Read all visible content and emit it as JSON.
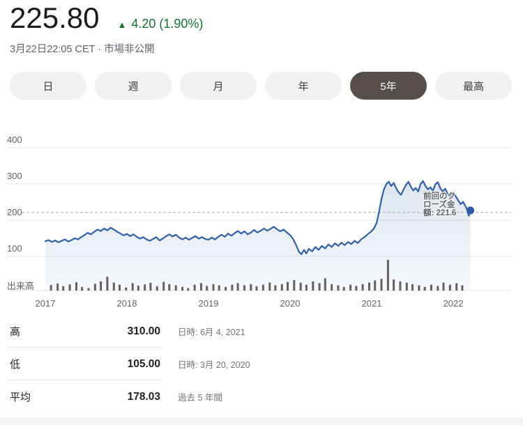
{
  "header": {
    "price": "225.80",
    "change_arrow": "▲",
    "change_text": "4.20 (1.90%)",
    "timestamp": "3月22日22:05 CET · 市場非公開"
  },
  "range_buttons": {
    "items": [
      {
        "label": "日",
        "selected": false
      },
      {
        "label": "週",
        "selected": false
      },
      {
        "label": "月",
        "selected": false
      },
      {
        "label": "年",
        "selected": false
      },
      {
        "label": "5年",
        "selected": true
      },
      {
        "label": "最高",
        "selected": false
      }
    ]
  },
  "chart_data": {
    "type": "line",
    "title": "",
    "xlabel": "",
    "ylabel": "",
    "x_ticks": [
      "2017",
      "2018",
      "2019",
      "2020",
      "2021",
      "2022"
    ],
    "y_ticks": [
      400,
      300,
      200,
      100
    ],
    "ylim": [
      60,
      430
    ],
    "grid": true,
    "volume_axis_label": "出来高",
    "previous_close": {
      "value": 221.6,
      "label_lines": [
        "前回のク",
        "ローズ金",
        "額: 221.6"
      ]
    },
    "last_price": 225.8,
    "high": {
      "value": 310.0,
      "date": "6月 4, 2021"
    },
    "low": {
      "value": 105.0,
      "date": "3月 20, 2020"
    },
    "average": {
      "value": 178.03,
      "period": "過去 5 年間"
    },
    "price_series": [
      [
        2017.0,
        142
      ],
      [
        2017.04,
        145
      ],
      [
        2017.08,
        140
      ],
      [
        2017.12,
        144
      ],
      [
        2017.16,
        139
      ],
      [
        2017.2,
        143
      ],
      [
        2017.24,
        147
      ],
      [
        2017.28,
        141
      ],
      [
        2017.32,
        145
      ],
      [
        2017.36,
        150
      ],
      [
        2017.4,
        147
      ],
      [
        2017.44,
        153
      ],
      [
        2017.48,
        159
      ],
      [
        2017.52,
        165
      ],
      [
        2017.56,
        161
      ],
      [
        2017.6,
        168
      ],
      [
        2017.64,
        174
      ],
      [
        2017.68,
        170
      ],
      [
        2017.72,
        177
      ],
      [
        2017.76,
        172
      ],
      [
        2017.8,
        179
      ],
      [
        2017.84,
        174
      ],
      [
        2017.88,
        168
      ],
      [
        2017.92,
        163
      ],
      [
        2017.96,
        158
      ],
      [
        2018.0,
        162
      ],
      [
        2018.04,
        156
      ],
      [
        2018.08,
        161
      ],
      [
        2018.12,
        154
      ],
      [
        2018.16,
        149
      ],
      [
        2018.2,
        153
      ],
      [
        2018.24,
        147
      ],
      [
        2018.28,
        143
      ],
      [
        2018.32,
        148
      ],
      [
        2018.36,
        153
      ],
      [
        2018.4,
        144
      ],
      [
        2018.44,
        149
      ],
      [
        2018.48,
        156
      ],
      [
        2018.52,
        161
      ],
      [
        2018.56,
        155
      ],
      [
        2018.6,
        160
      ],
      [
        2018.64,
        152
      ],
      [
        2018.68,
        147
      ],
      [
        2018.72,
        152
      ],
      [
        2018.76,
        146
      ],
      [
        2018.8,
        151
      ],
      [
        2018.84,
        156
      ],
      [
        2018.88,
        149
      ],
      [
        2018.92,
        153
      ],
      [
        2018.96,
        148
      ],
      [
        2019.0,
        146
      ],
      [
        2019.04,
        152
      ],
      [
        2019.08,
        147
      ],
      [
        2019.12,
        154
      ],
      [
        2019.16,
        160
      ],
      [
        2019.2,
        154
      ],
      [
        2019.24,
        163
      ],
      [
        2019.28,
        157
      ],
      [
        2019.32,
        164
      ],
      [
        2019.36,
        170
      ],
      [
        2019.4,
        163
      ],
      [
        2019.44,
        169
      ],
      [
        2019.48,
        161
      ],
      [
        2019.52,
        166
      ],
      [
        2019.56,
        173
      ],
      [
        2019.6,
        166
      ],
      [
        2019.64,
        171
      ],
      [
        2019.68,
        177
      ],
      [
        2019.72,
        171
      ],
      [
        2019.76,
        176
      ],
      [
        2019.8,
        182
      ],
      [
        2019.84,
        175
      ],
      [
        2019.88,
        169
      ],
      [
        2019.92,
        174
      ],
      [
        2019.96,
        166
      ],
      [
        2020.0,
        159
      ],
      [
        2020.04,
        147
      ],
      [
        2020.08,
        128
      ],
      [
        2020.11,
        112
      ],
      [
        2020.14,
        106
      ],
      [
        2020.17,
        118
      ],
      [
        2020.2,
        108
      ],
      [
        2020.23,
        121
      ],
      [
        2020.27,
        114
      ],
      [
        2020.31,
        126
      ],
      [
        2020.35,
        118
      ],
      [
        2020.39,
        129
      ],
      [
        2020.43,
        122
      ],
      [
        2020.47,
        133
      ],
      [
        2020.51,
        126
      ],
      [
        2020.55,
        136
      ],
      [
        2020.59,
        129
      ],
      [
        2020.63,
        138
      ],
      [
        2020.67,
        131
      ],
      [
        2020.71,
        140
      ],
      [
        2020.75,
        134
      ],
      [
        2020.79,
        143
      ],
      [
        2020.83,
        137
      ],
      [
        2020.87,
        147
      ],
      [
        2020.91,
        153
      ],
      [
        2020.95,
        161
      ],
      [
        2021.0,
        170
      ],
      [
        2021.03,
        178
      ],
      [
        2021.06,
        192
      ],
      [
        2021.09,
        222
      ],
      [
        2021.12,
        258
      ],
      [
        2021.15,
        285
      ],
      [
        2021.18,
        300
      ],
      [
        2021.21,
        306
      ],
      [
        2021.24,
        294
      ],
      [
        2021.27,
        303
      ],
      [
        2021.3,
        288
      ],
      [
        2021.33,
        277
      ],
      [
        2021.36,
        270
      ],
      [
        2021.39,
        284
      ],
      [
        2021.42,
        297
      ],
      [
        2021.45,
        306
      ],
      [
        2021.48,
        292
      ],
      [
        2021.51,
        282
      ],
      [
        2021.54,
        289
      ],
      [
        2021.57,
        279
      ],
      [
        2021.6,
        300
      ],
      [
        2021.63,
        308
      ],
      [
        2021.66,
        294
      ],
      [
        2021.69,
        285
      ],
      [
        2021.72,
        291
      ],
      [
        2021.75,
        281
      ],
      [
        2021.78,
        299
      ],
      [
        2021.81,
        305
      ],
      [
        2021.84,
        289
      ],
      [
        2021.87,
        279
      ],
      [
        2021.9,
        287
      ],
      [
        2021.93,
        274
      ],
      [
        2021.96,
        266
      ],
      [
        2022.0,
        276
      ],
      [
        2022.03,
        266
      ],
      [
        2022.06,
        255
      ],
      [
        2022.09,
        244
      ],
      [
        2022.12,
        251
      ],
      [
        2022.15,
        238
      ],
      [
        2022.17,
        229
      ],
      [
        2022.19,
        212
      ],
      [
        2022.21,
        227
      ]
    ],
    "volume_series": [
      [
        2017.07,
        0.18
      ],
      [
        2017.15,
        0.23
      ],
      [
        2017.22,
        0.14
      ],
      [
        2017.3,
        0.2
      ],
      [
        2017.38,
        0.27
      ],
      [
        2017.45,
        0.12
      ],
      [
        2017.53,
        0.08
      ],
      [
        2017.61,
        0.22
      ],
      [
        2017.68,
        0.3
      ],
      [
        2017.76,
        0.45
      ],
      [
        2017.84,
        0.26
      ],
      [
        2017.91,
        0.19
      ],
      [
        2017.99,
        0.1
      ],
      [
        2018.07,
        0.24
      ],
      [
        2018.14,
        0.16
      ],
      [
        2018.22,
        0.2
      ],
      [
        2018.29,
        0.25
      ],
      [
        2018.37,
        0.14
      ],
      [
        2018.45,
        0.28
      ],
      [
        2018.52,
        0.21
      ],
      [
        2018.6,
        0.17
      ],
      [
        2018.68,
        0.12
      ],
      [
        2018.75,
        0.08
      ],
      [
        2018.83,
        0.19
      ],
      [
        2018.91,
        0.24
      ],
      [
        2018.98,
        0.15
      ],
      [
        2019.06,
        0.21
      ],
      [
        2019.13,
        0.17
      ],
      [
        2019.21,
        0.12
      ],
      [
        2019.29,
        0.19
      ],
      [
        2019.36,
        0.24
      ],
      [
        2019.44,
        0.17
      ],
      [
        2019.52,
        0.21
      ],
      [
        2019.59,
        0.14
      ],
      [
        2019.67,
        0.19
      ],
      [
        2019.75,
        0.26
      ],
      [
        2019.82,
        0.17
      ],
      [
        2019.9,
        0.21
      ],
      [
        2019.97,
        0.28
      ],
      [
        2020.05,
        0.34
      ],
      [
        2020.13,
        0.26
      ],
      [
        2020.2,
        0.19
      ],
      [
        2020.28,
        0.3
      ],
      [
        2020.36,
        0.24
      ],
      [
        2020.43,
        0.4
      ],
      [
        2020.51,
        0.21
      ],
      [
        2020.59,
        0.17
      ],
      [
        2020.66,
        0.12
      ],
      [
        2020.74,
        0.19
      ],
      [
        2020.81,
        0.15
      ],
      [
        2020.89,
        0.21
      ],
      [
        2020.97,
        0.26
      ],
      [
        2021.04,
        0.33
      ],
      [
        2021.12,
        0.38
      ],
      [
        2021.2,
        1.0
      ],
      [
        2021.27,
        0.36
      ],
      [
        2021.35,
        0.3
      ],
      [
        2021.43,
        0.26
      ],
      [
        2021.5,
        0.21
      ],
      [
        2021.58,
        0.17
      ],
      [
        2021.65,
        0.12
      ],
      [
        2021.73,
        0.19
      ],
      [
        2021.81,
        0.15
      ],
      [
        2021.88,
        0.26
      ],
      [
        2021.96,
        0.19
      ],
      [
        2022.04,
        0.24
      ],
      [
        2022.11,
        0.17
      ]
    ],
    "colors": {
      "line": "#3060a8",
      "dot": "#2d5ca6",
      "fill": "#3060a8",
      "volume": "#616161",
      "grid": "#e4e4e4",
      "dashed": "#b9b9b9",
      "tick_text": "#636363",
      "up_green": "#137333"
    }
  },
  "stats": {
    "rows": [
      {
        "label": "高",
        "value": "310.00",
        "note": "日時: 6月 4, 2021"
      },
      {
        "label": "低",
        "value": "105.00",
        "note": "日時: 3月 20, 2020"
      },
      {
        "label": "平均",
        "value": "178.03",
        "note": "過去 5 年間"
      }
    ]
  }
}
